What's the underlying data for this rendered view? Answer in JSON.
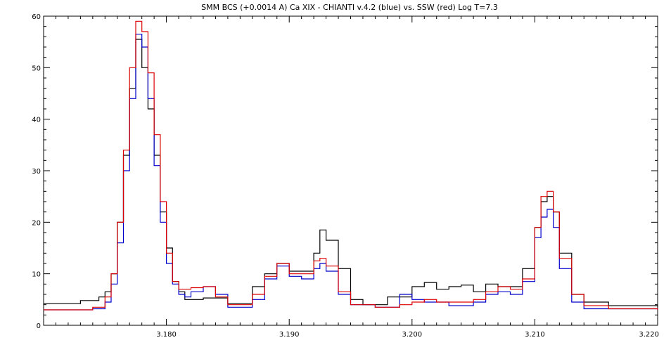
{
  "chart_data": {
    "type": "line",
    "title": "SMM BCS (+0.0014 A) Ca XIX - CHIANTI v.4.2 (blue) vs. SSW (red) Log T=7.3",
    "xlabel": "",
    "ylabel": "",
    "xlim": [
      3.17,
      3.22
    ],
    "ylim": [
      0,
      60
    ],
    "x_ticks": [
      3.18,
      3.19,
      3.2,
      3.21,
      3.22
    ],
    "x_tick_labels": [
      "3.180",
      "3.190",
      "3.200",
      "3.210",
      "3.220"
    ],
    "y_ticks": [
      0,
      10,
      20,
      30,
      40,
      50,
      60
    ],
    "y_tick_labels": [
      "0",
      "10",
      "20",
      "30",
      "40",
      "50",
      "60"
    ],
    "step_style": "histogram",
    "grid": false,
    "legend": "none",
    "series": [
      {
        "color": "#000000",
        "points": [
          [
            3.17,
            4.2
          ],
          [
            3.173,
            4.8
          ],
          [
            3.1745,
            5.5
          ],
          [
            3.175,
            6.5
          ],
          [
            3.1755,
            10.0
          ],
          [
            3.176,
            20.0
          ],
          [
            3.1765,
            33.0
          ],
          [
            3.177,
            46.0
          ],
          [
            3.1775,
            55.5
          ],
          [
            3.178,
            50.0
          ],
          [
            3.1785,
            42.0
          ],
          [
            3.179,
            33.0
          ],
          [
            3.1795,
            22.0
          ],
          [
            3.18,
            15.0
          ],
          [
            3.1805,
            8.5
          ],
          [
            3.181,
            6.5
          ],
          [
            3.1815,
            5.0
          ],
          [
            3.183,
            5.3
          ],
          [
            3.185,
            4.2
          ],
          [
            3.187,
            7.5
          ],
          [
            3.188,
            10.0
          ],
          [
            3.189,
            12.0
          ],
          [
            3.19,
            10.5
          ],
          [
            3.191,
            10.5
          ],
          [
            3.192,
            14.0
          ],
          [
            3.1925,
            18.5
          ],
          [
            3.193,
            16.5
          ],
          [
            3.194,
            11.0
          ],
          [
            3.195,
            5.0
          ],
          [
            3.196,
            4.0
          ],
          [
            3.198,
            5.5
          ],
          [
            3.2,
            7.5
          ],
          [
            3.201,
            8.3
          ],
          [
            3.202,
            7.0
          ],
          [
            3.203,
            7.5
          ],
          [
            3.204,
            7.8
          ],
          [
            3.205,
            6.5
          ],
          [
            3.206,
            8.0
          ],
          [
            3.207,
            7.5
          ],
          [
            3.208,
            7.5
          ],
          [
            3.209,
            11.0
          ],
          [
            3.21,
            19.0
          ],
          [
            3.2105,
            24.0
          ],
          [
            3.211,
            25.0
          ],
          [
            3.2115,
            22.0
          ],
          [
            3.212,
            14.0
          ],
          [
            3.213,
            6.0
          ],
          [
            3.214,
            4.5
          ],
          [
            3.216,
            3.8
          ],
          [
            3.22,
            3.5
          ]
        ]
      },
      {
        "color": "#0000cc",
        "points": [
          [
            3.17,
            3.0
          ],
          [
            3.174,
            3.2
          ],
          [
            3.175,
            4.5
          ],
          [
            3.1755,
            8.0
          ],
          [
            3.176,
            16.0
          ],
          [
            3.1765,
            30.0
          ],
          [
            3.177,
            44.0
          ],
          [
            3.1775,
            56.5
          ],
          [
            3.178,
            54.0
          ],
          [
            3.1785,
            44.0
          ],
          [
            3.179,
            31.0
          ],
          [
            3.1795,
            20.0
          ],
          [
            3.18,
            12.0
          ],
          [
            3.1805,
            8.0
          ],
          [
            3.181,
            6.0
          ],
          [
            3.1815,
            5.5
          ],
          [
            3.182,
            6.5
          ],
          [
            3.183,
            7.5
          ],
          [
            3.184,
            6.0
          ],
          [
            3.185,
            3.5
          ],
          [
            3.186,
            3.5
          ],
          [
            3.187,
            5.0
          ],
          [
            3.188,
            9.0
          ],
          [
            3.189,
            11.5
          ],
          [
            3.19,
            9.5
          ],
          [
            3.191,
            9.0
          ],
          [
            3.192,
            11.0
          ],
          [
            3.1925,
            12.0
          ],
          [
            3.193,
            10.5
          ],
          [
            3.194,
            6.0
          ],
          [
            3.195,
            4.0
          ],
          [
            3.197,
            3.5
          ],
          [
            3.199,
            6.0
          ],
          [
            3.2,
            5.0
          ],
          [
            3.201,
            4.5
          ],
          [
            3.203,
            3.8
          ],
          [
            3.205,
            4.5
          ],
          [
            3.206,
            6.0
          ],
          [
            3.207,
            6.5
          ],
          [
            3.208,
            6.0
          ],
          [
            3.209,
            8.5
          ],
          [
            3.21,
            17.0
          ],
          [
            3.2105,
            21.0
          ],
          [
            3.211,
            22.5
          ],
          [
            3.2115,
            19.0
          ],
          [
            3.212,
            11.0
          ],
          [
            3.213,
            4.5
          ],
          [
            3.214,
            3.2
          ],
          [
            3.22,
            3.0
          ]
        ]
      },
      {
        "color": "#dd0000",
        "points": [
          [
            3.17,
            3.0
          ],
          [
            3.174,
            3.5
          ],
          [
            3.175,
            5.5
          ],
          [
            3.1755,
            10.0
          ],
          [
            3.176,
            20.0
          ],
          [
            3.1765,
            34.0
          ],
          [
            3.177,
            50.0
          ],
          [
            3.1775,
            59.0
          ],
          [
            3.178,
            57.0
          ],
          [
            3.1785,
            49.0
          ],
          [
            3.179,
            37.0
          ],
          [
            3.1795,
            24.0
          ],
          [
            3.18,
            14.0
          ],
          [
            3.1805,
            8.5
          ],
          [
            3.181,
            7.0
          ],
          [
            3.182,
            7.3
          ],
          [
            3.183,
            7.5
          ],
          [
            3.184,
            5.5
          ],
          [
            3.185,
            4.0
          ],
          [
            3.187,
            6.0
          ],
          [
            3.188,
            9.5
          ],
          [
            3.189,
            12.0
          ],
          [
            3.19,
            10.0
          ],
          [
            3.191,
            10.0
          ],
          [
            3.192,
            12.5
          ],
          [
            3.1925,
            13.0
          ],
          [
            3.193,
            11.5
          ],
          [
            3.194,
            6.5
          ],
          [
            3.195,
            4.0
          ],
          [
            3.197,
            3.5
          ],
          [
            3.199,
            4.0
          ],
          [
            3.2,
            4.5
          ],
          [
            3.201,
            5.0
          ],
          [
            3.202,
            4.5
          ],
          [
            3.204,
            4.5
          ],
          [
            3.205,
            5.0
          ],
          [
            3.206,
            6.5
          ],
          [
            3.207,
            7.5
          ],
          [
            3.208,
            7.0
          ],
          [
            3.209,
            9.0
          ],
          [
            3.21,
            19.0
          ],
          [
            3.2105,
            25.0
          ],
          [
            3.211,
            26.0
          ],
          [
            3.2115,
            22.0
          ],
          [
            3.212,
            13.0
          ],
          [
            3.213,
            6.0
          ],
          [
            3.214,
            3.8
          ],
          [
            3.216,
            3.2
          ],
          [
            3.22,
            3.0
          ]
        ]
      }
    ]
  }
}
